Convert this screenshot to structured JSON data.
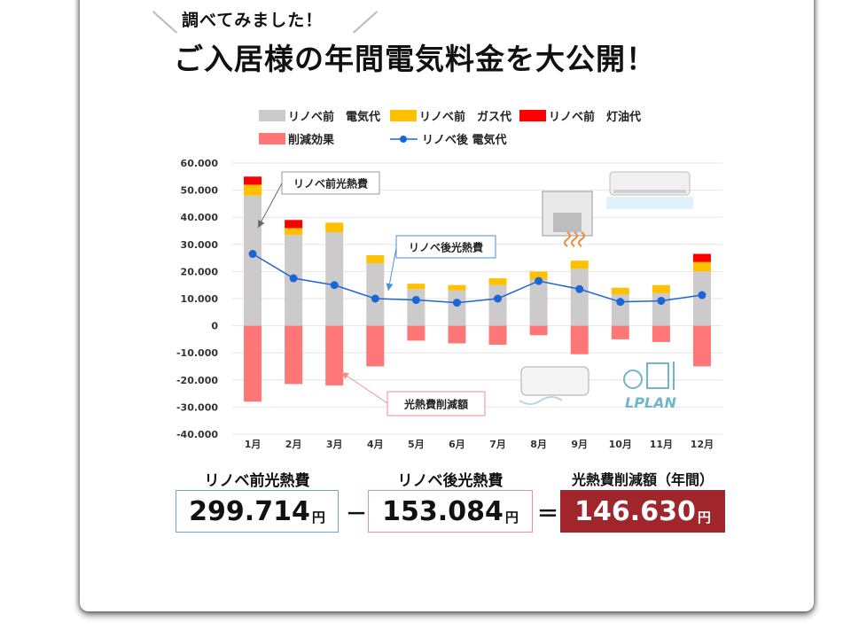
{
  "header": {
    "subtitle": "調べてみました！",
    "title": "ご入居様の年間電気料金を大公開！"
  },
  "chart_data": {
    "type": "bar",
    "categories": [
      "1月",
      "2月",
      "3月",
      "4月",
      "5月",
      "6月",
      "7月",
      "8月",
      "9月",
      "10月",
      "11月",
      "12月"
    ],
    "ylim": [
      -40000,
      60000
    ],
    "yticks": [
      "60.000",
      "50.000",
      "40.000",
      "30.000",
      "20.000",
      "10.000",
      "0",
      "-10.000",
      "-20.000",
      "-30.000",
      "-40.000"
    ],
    "ytick_values": [
      60000,
      50000,
      40000,
      30000,
      20000,
      10000,
      0,
      -10000,
      -20000,
      -30000,
      -40000
    ],
    "grid": true,
    "legend_position": "top",
    "series": [
      {
        "name": "リノベ前　電気代",
        "color": "#cccaca",
        "kind": "bar",
        "values": [
          48000,
          33500,
          34500,
          23000,
          13500,
          13000,
          15000,
          17000,
          21000,
          11500,
          12000,
          20000
        ]
      },
      {
        "name": "リノベ前　ガス代",
        "color": "#ffc000",
        "kind": "bar",
        "values": [
          4000,
          2500,
          3500,
          3000,
          2000,
          2000,
          2500,
          3000,
          3000,
          2500,
          3000,
          3500
        ]
      },
      {
        "name": "リノベ前　灯油代",
        "color": "#ff0000",
        "kind": "bar",
        "values": [
          3000,
          3000,
          0,
          0,
          0,
          0,
          0,
          0,
          0,
          0,
          0,
          3000
        ]
      },
      {
        "name": "削減効果",
        "color": "#ff7676",
        "kind": "bar",
        "values": [
          -28000,
          -21500,
          -22000,
          -15000,
          -5500,
          -6500,
          -7000,
          -3500,
          -10500,
          -5000,
          -6000,
          -15000
        ]
      },
      {
        "name": "リノベ後 電気代",
        "color": "#1a66d6",
        "kind": "line",
        "values": [
          26500,
          17500,
          15000,
          10000,
          9500,
          8500,
          10000,
          16500,
          13500,
          8800,
          9200,
          11300
        ]
      }
    ],
    "annotations": [
      "リノベ前光熱費",
      "リノベ後光熱費",
      "光熱費削減額"
    ]
  },
  "summary": {
    "before_label": "リノベ前光熱費",
    "before_value": "299.714",
    "after_label": "リノベ後光熱費",
    "after_value": "153.084",
    "saving_label": "光熱費削減額（年間）",
    "saving_value": "146.630",
    "unit": "円",
    "minus": "－",
    "equals": "＝"
  },
  "logo_text": "LPLAN"
}
